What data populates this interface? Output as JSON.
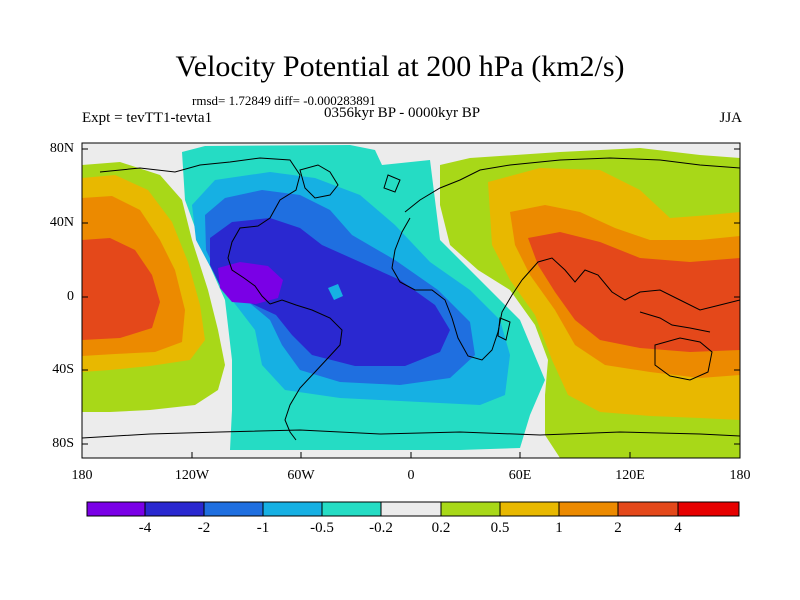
{
  "header": {
    "title": "Velocity Potential at 200 hPa (km2/s)",
    "stats": "rmsd= 1.72849 diff= -0.000283891",
    "expt": "Expt = tevTT1-tevta1",
    "period": "0356kyr BP - 0000kyr BP",
    "season": "JJA"
  },
  "axes": {
    "lat_ticks": [
      "80N",
      "40N",
      "0",
      "40S",
      "80S"
    ],
    "lon_ticks": [
      "180",
      "120W",
      "60W",
      "0",
      "60E",
      "120E",
      "180"
    ]
  },
  "colorbar": {
    "labels": [
      "-4",
      "-2",
      "-1",
      "-0.5",
      "-0.2",
      "0.2",
      "0.5",
      "1",
      "2",
      "4"
    ],
    "colors": [
      "#7a00e6",
      "#2a28d0",
      "#1f6fe0",
      "#16b0e3",
      "#25dcc4",
      "#ececec",
      "#a8d818",
      "#e8b800",
      "#ec8a00",
      "#e4481a",
      "#e60000"
    ]
  }
}
